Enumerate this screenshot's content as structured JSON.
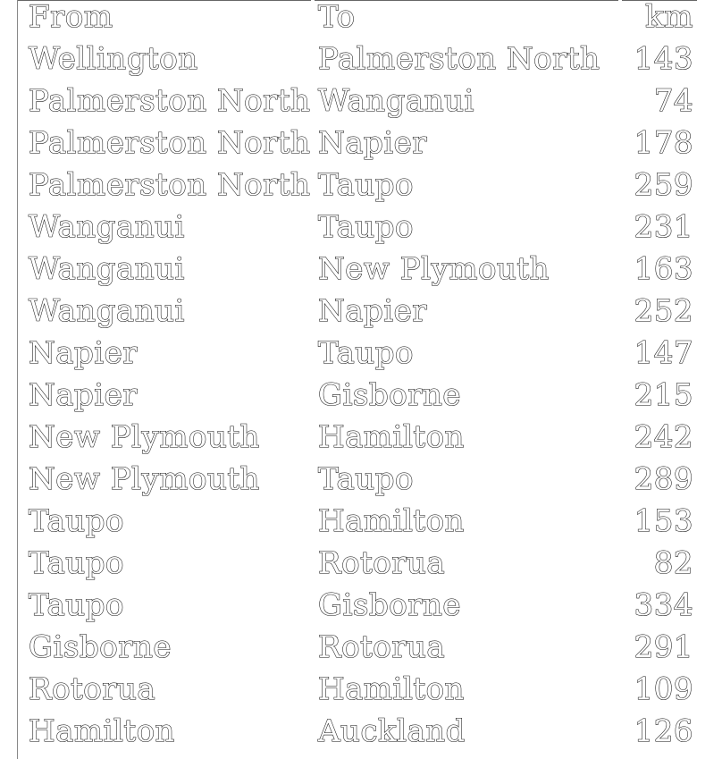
{
  "table": {
    "headers": {
      "from": "From",
      "to": "To",
      "km": "km"
    },
    "rows": [
      {
        "from": "Wellington",
        "to": "Palmerston North",
        "km": "143"
      },
      {
        "from": "Palmerston North",
        "to": "Wanganui",
        "km": "74"
      },
      {
        "from": "Palmerston North",
        "to": "Napier",
        "km": "178"
      },
      {
        "from": "Palmerston North",
        "to": "Taupo",
        "km": "259"
      },
      {
        "from": "Wanganui",
        "to": "Taupo",
        "km": "231"
      },
      {
        "from": "Wanganui",
        "to": "New Plymouth",
        "km": "163"
      },
      {
        "from": "Wanganui",
        "to": "Napier",
        "km": "252"
      },
      {
        "from": "Napier",
        "to": "Taupo",
        "km": "147"
      },
      {
        "from": "Napier",
        "to": "Gisborne",
        "km": "215"
      },
      {
        "from": "New Plymouth",
        "to": "Hamilton",
        "km": "242"
      },
      {
        "from": "New Plymouth",
        "to": "Taupo",
        "km": "289"
      },
      {
        "from": "Taupo",
        "to": "Hamilton",
        "km": "153"
      },
      {
        "from": "Taupo",
        "to": "Rotorua",
        "km": "82"
      },
      {
        "from": "Taupo",
        "to": "Gisborne",
        "km": "334"
      },
      {
        "from": "Gisborne",
        "to": "Rotorua",
        "km": "291"
      },
      {
        "from": "Rotorua",
        "to": "Hamilton",
        "km": "109"
      },
      {
        "from": "Hamilton",
        "to": "Auckland",
        "km": "126"
      }
    ]
  }
}
